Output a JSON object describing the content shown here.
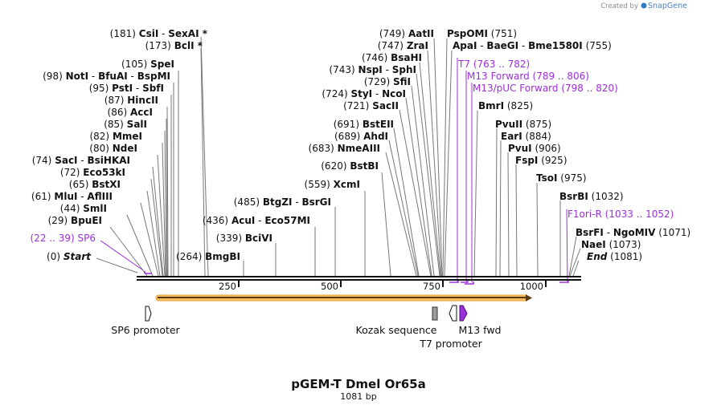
{
  "credit": {
    "text": "Created by",
    "brand": "SnapGene"
  },
  "title": "pGEM-T Dmel Or65a",
  "length_label": "1081 bp",
  "ticks": [
    "250",
    "500",
    "750",
    "1000"
  ],
  "sites": [
    {
      "pos": "(181)",
      "name": "CsiI",
      "sep": " - ",
      "name2": "SexAI *"
    },
    {
      "pos": "(173)",
      "name": "BclI *"
    },
    {
      "pos": "(105)",
      "name": "SpeI"
    },
    {
      "pos": "(98)",
      "name": "NotI",
      "sep": " - ",
      "name2": "BfuAI",
      "sep2": " - ",
      "name3": "BspMI"
    },
    {
      "pos": "(95)",
      "name": "PstI",
      "sep": " - ",
      "name2": "SbfI"
    },
    {
      "pos": "(87)",
      "name": "HincII"
    },
    {
      "pos": "(86)",
      "name": "AccI"
    },
    {
      "pos": "(85)",
      "name": "SalI"
    },
    {
      "pos": "(82)",
      "name": "MmeI"
    },
    {
      "pos": "(80)",
      "name": "NdeI"
    },
    {
      "pos": "(74)",
      "name": "SacI",
      "sep": " - ",
      "name2": "BsiHKAI"
    },
    {
      "pos": "(72)",
      "name": "Eco53kI"
    },
    {
      "pos": "(65)",
      "name": "BstXI"
    },
    {
      "pos": "(61)",
      "name": "MluI",
      "sep": " - ",
      "name2": "AflIII"
    },
    {
      "pos": "(44)",
      "name": "SmlI"
    },
    {
      "pos": "(29)",
      "name": "BpuEI"
    },
    {
      "pos": "(22 .. 39)",
      "name": "SP6"
    },
    {
      "pos": "(0)",
      "name": "Start"
    },
    {
      "pos": "(264)",
      "name": "BmgBI"
    },
    {
      "pos": "(339)",
      "name": "BciVI"
    },
    {
      "pos": "(436)",
      "name": "AcuI",
      "sep": " - ",
      "name2": "Eco57MI"
    },
    {
      "pos": "(485)",
      "name": "BtgZI",
      "sep": " - ",
      "name2": "BsrGI"
    },
    {
      "pos": "(559)",
      "name": "XcmI"
    },
    {
      "pos": "(620)",
      "name": "BstBI"
    },
    {
      "pos": "(683)",
      "name": "NmeAIII"
    },
    {
      "pos": "(689)",
      "name": "AhdI"
    },
    {
      "pos": "(691)",
      "name": "BstEII"
    },
    {
      "pos": "(721)",
      "name": "SacII"
    },
    {
      "pos": "(724)",
      "name": "StyI",
      "sep": " - ",
      "name2": "NcoI"
    },
    {
      "pos": "(729)",
      "name": "SfiI"
    },
    {
      "pos": "(743)",
      "name": "NspI",
      "sep": " - ",
      "name2": "SphI"
    },
    {
      "pos": "(746)",
      "name": "BsaHI"
    },
    {
      "pos": "(747)",
      "name": "ZraI"
    },
    {
      "pos": "(749)",
      "name": "AatII"
    },
    {
      "name": "PspOMI",
      "pos": "(751)"
    },
    {
      "name": "ApaI",
      "sep": " - ",
      "name2": "BaeGI",
      "sep2": " - ",
      "name3": "Bme1580I",
      "pos": "(755)"
    },
    {
      "name": "T7",
      "pos": "(763 .. 782)"
    },
    {
      "name": "M13 Forward",
      "pos": "(789 .. 806)"
    },
    {
      "name": "M13/pUC Forward",
      "pos": "(798 .. 820)"
    },
    {
      "name": "BmrI",
      "pos": "(825)"
    },
    {
      "name": "PvuII",
      "pos": "(875)"
    },
    {
      "name": "EarI",
      "pos": "(884)"
    },
    {
      "name": "PvuI",
      "pos": "(906)"
    },
    {
      "name": "FspI",
      "pos": "(925)"
    },
    {
      "name": "TsoI",
      "pos": "(975)"
    },
    {
      "name": "BsrBI",
      "pos": "(1032)"
    },
    {
      "name": "F1ori-R",
      "pos": "(1033 .. 1052)"
    },
    {
      "name": "BsrFI",
      "sep": " - ",
      "name2": "NgoMIV",
      "pos": "(1071)"
    },
    {
      "name": "NaeI",
      "pos": "(1073)"
    },
    {
      "name": "End",
      "pos": "(1081)"
    }
  ],
  "features": [
    {
      "name": "SP6 promoter"
    },
    {
      "name": "Kozak sequence"
    },
    {
      "name": "T7 promoter"
    },
    {
      "name": "M13 fwd"
    }
  ],
  "colors": {
    "primer": "#9b30d9",
    "orf_fill": "#f7c163",
    "orf_stroke": "#e5a23a",
    "backbone": "#111111"
  }
}
